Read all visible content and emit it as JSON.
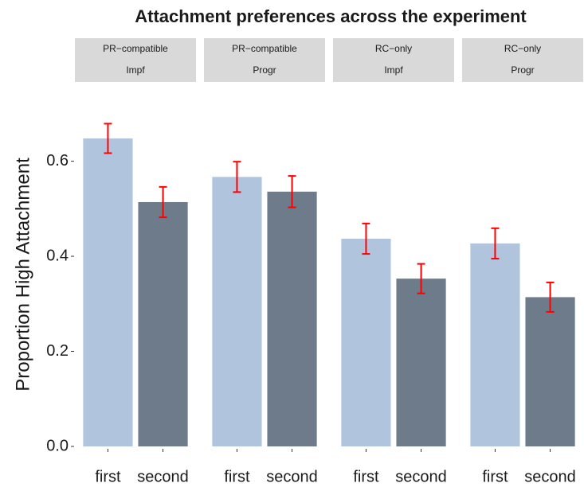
{
  "chart_data": {
    "type": "bar",
    "title": "Attachment preferences across the experiment",
    "ylabel": "Proportion High Attachment",
    "ylim": [
      0,
      0.75
    ],
    "yticks": [
      {
        "value": 0,
        "label": "0.0"
      },
      0.2,
      0.4,
      0.6
    ],
    "colors": [
      "#b0c4de",
      "#6e7b8b"
    ],
    "error_color": "#ff0000",
    "panels": [
      {
        "strip": [
          "PR−compatible",
          "Impf"
        ],
        "categories": [
          "first",
          "second"
        ],
        "values": [
          0.648,
          0.514
        ],
        "errors": [
          0.031,
          0.032
        ]
      },
      {
        "strip": [
          "PR−compatible",
          "Progr"
        ],
        "categories": [
          "first",
          "second"
        ],
        "values": [
          0.567,
          0.536
        ],
        "errors": [
          0.032,
          0.033
        ]
      },
      {
        "strip": [
          "RC−only",
          "Impf"
        ],
        "categories": [
          "first",
          "second"
        ],
        "values": [
          0.437,
          0.353
        ],
        "errors": [
          0.032,
          0.031
        ]
      },
      {
        "strip": [
          "RC−only",
          "Progr"
        ],
        "categories": [
          "first",
          "second"
        ],
        "values": [
          0.427,
          0.314
        ],
        "errors": [
          0.032,
          0.031
        ]
      }
    ]
  }
}
